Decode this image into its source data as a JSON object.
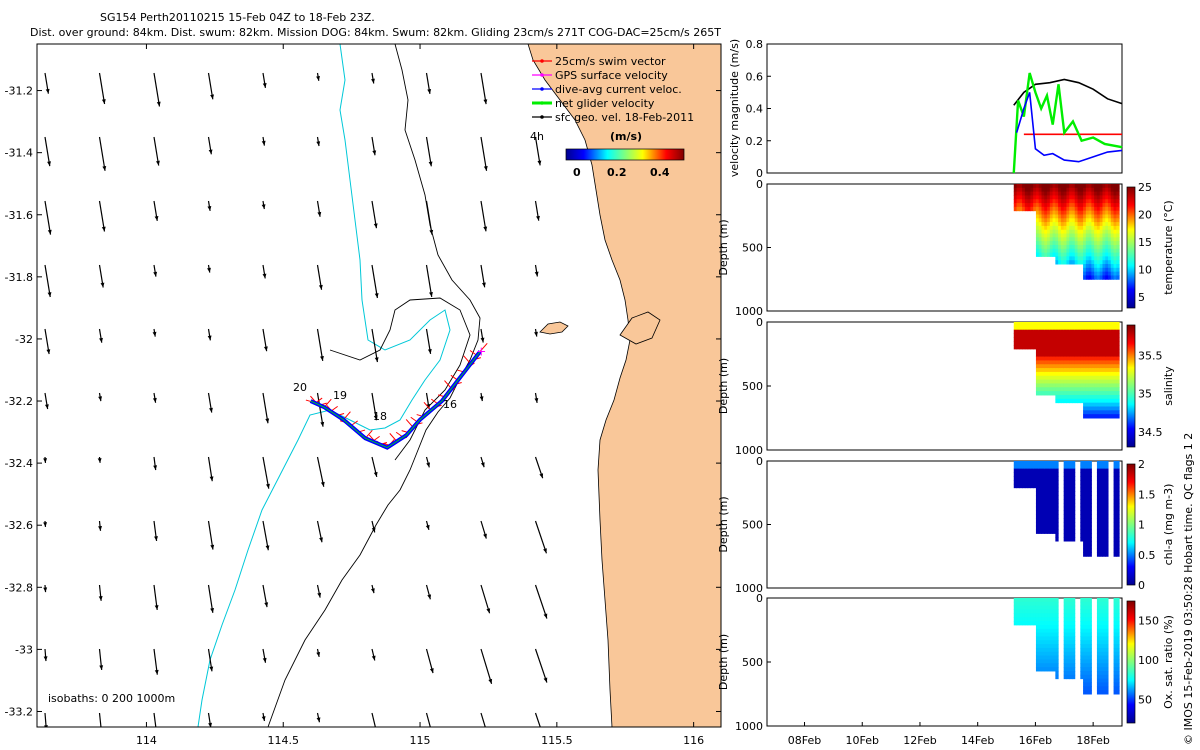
{
  "header": {
    "line1": "SG154 Perth20110215 15-Feb 04Z to 18-Feb 23Z.",
    "line2": "Dist. over ground: 84km. Dist. swum: 82km. Mission DOG: 84km. Swum: 82km. Gliding 23cm/s 271T COG-DAC=25cm/s 265T"
  },
  "footer_credit": "© IMOS 15-Feb-2019 03:50:28 Hobart time. QC flags 1  2",
  "colors": {
    "land": "#f9c799",
    "swim_vector": "#ff0000",
    "gps_velocity": "#ff00ff",
    "dac": "#0000ff",
    "net_velocity": "#00ee00",
    "geostrophic": "#000000",
    "isobath": "#00c8d8"
  },
  "chart_data": [
    {
      "type": "map",
      "xticks": [
        "114",
        "114.5",
        "115",
        "115.5",
        "116"
      ],
      "yticks": [
        "-31.2",
        "-31.4",
        "-31.6",
        "-31.8",
        "-32",
        "-32.2",
        "-32.4",
        "-32.6",
        "-32.8",
        "-33",
        "-33.2"
      ],
      "xlim": [
        113.6,
        116.1
      ],
      "ylim": [
        -33.25,
        -31.05
      ],
      "legend": [
        {
          "label": "25cm/s swim vector",
          "color": "#ff0000"
        },
        {
          "label": "GPS surface velocity",
          "color": "#ff00ff"
        },
        {
          "label": "dive-avg current veloc.",
          "color": "#0000ff"
        },
        {
          "label": "net glider velocity",
          "color": "#00ee00"
        },
        {
          "label": "sfc geo. vel. 18-Feb-2011",
          "color": "#000000"
        }
      ],
      "legend_scale_label": "4h",
      "colorbar": {
        "title": "(m/s)",
        "ticks": [
          "0",
          "0.2",
          "0.4"
        ]
      },
      "isobath_note": "isobaths: 0   200  1000m",
      "track_day_labels": [
        "20",
        "19",
        "18",
        "16"
      ],
      "glider_track": {
        "lon": [
          115.22,
          115.15,
          115.08,
          115.0,
          114.95,
          114.88,
          114.8,
          114.72,
          114.65,
          114.6
        ],
        "lat": [
          -32.04,
          -32.12,
          -32.2,
          -32.26,
          -32.31,
          -32.35,
          -32.32,
          -32.26,
          -32.22,
          -32.2
        ]
      }
    },
    {
      "type": "line",
      "ylabel": "velocity magnitude (m/s)",
      "ylim": [
        0,
        0.8
      ],
      "yticks": [
        "0",
        "0.2",
        "0.4",
        "0.6",
        "0.8"
      ],
      "series": [
        {
          "color": "#000000",
          "x": [
            15.25,
            15.6,
            16.0,
            16.5,
            17.0,
            17.5,
            18.0,
            18.5,
            19.0
          ],
          "y": [
            0.42,
            0.5,
            0.55,
            0.56,
            0.58,
            0.56,
            0.52,
            0.46,
            0.43
          ]
        },
        {
          "color": "#ff0000",
          "x": [
            15.6,
            19.0
          ],
          "y": [
            0.24,
            0.24
          ]
        },
        {
          "color": "#00ee00",
          "x": [
            15.25,
            15.4,
            15.6,
            15.8,
            16.0,
            16.2,
            16.4,
            16.6,
            16.8,
            17.0,
            17.3,
            17.6,
            18.0,
            18.4,
            19.0
          ],
          "y": [
            0.0,
            0.45,
            0.35,
            0.62,
            0.5,
            0.4,
            0.48,
            0.3,
            0.55,
            0.25,
            0.32,
            0.2,
            0.22,
            0.18,
            0.16
          ]
        },
        {
          "color": "#0000ff",
          "x": [
            15.35,
            15.6,
            15.8,
            16.0,
            16.3,
            16.6,
            17.0,
            17.5,
            18.0,
            18.5,
            19.0
          ],
          "y": [
            0.25,
            0.4,
            0.5,
            0.15,
            0.11,
            0.12,
            0.08,
            0.07,
            0.1,
            0.13,
            0.14
          ]
        }
      ]
    },
    {
      "type": "heatmap",
      "ylabel": "Depth (m)",
      "ylim": [
        1000,
        0
      ],
      "yticks": [
        "0",
        "500",
        "1000"
      ],
      "cbar_label": "temperature (°C)",
      "cbar_ticks": [
        "5",
        "10",
        "15",
        "20",
        "25"
      ],
      "crange": [
        3,
        25
      ]
    },
    {
      "type": "heatmap",
      "ylabel": "Depth (m)",
      "ylim": [
        1000,
        0
      ],
      "yticks": [
        "0",
        "500",
        "1000"
      ],
      "cbar_label": "salinity",
      "cbar_ticks": [
        "34.5",
        "35",
        "35.5"
      ],
      "crange": [
        34.3,
        35.9
      ]
    },
    {
      "type": "heatmap",
      "ylabel": "Depth (m)",
      "ylim": [
        1000,
        0
      ],
      "yticks": [
        "0",
        "500",
        "1000"
      ],
      "cbar_label": "chl-a (mg m-3)",
      "cbar_ticks": [
        "0",
        "0.5",
        "1",
        "1.5",
        "2"
      ],
      "crange": [
        0,
        2
      ]
    },
    {
      "type": "heatmap",
      "ylabel": "Depth (m)",
      "ylim": [
        1000,
        0
      ],
      "yticks": [
        "0",
        "500",
        "1000"
      ],
      "cbar_label": "Ox. sat. ratio (%)",
      "cbar_ticks": [
        "50",
        "100",
        "150"
      ],
      "crange": [
        20,
        175
      ]
    },
    {
      "type": "time_axis",
      "xticks": [
        "08Feb",
        "10Feb",
        "12Feb",
        "14Feb",
        "16Feb",
        "18Feb"
      ],
      "xlim": [
        6.7,
        19.0
      ]
    }
  ]
}
